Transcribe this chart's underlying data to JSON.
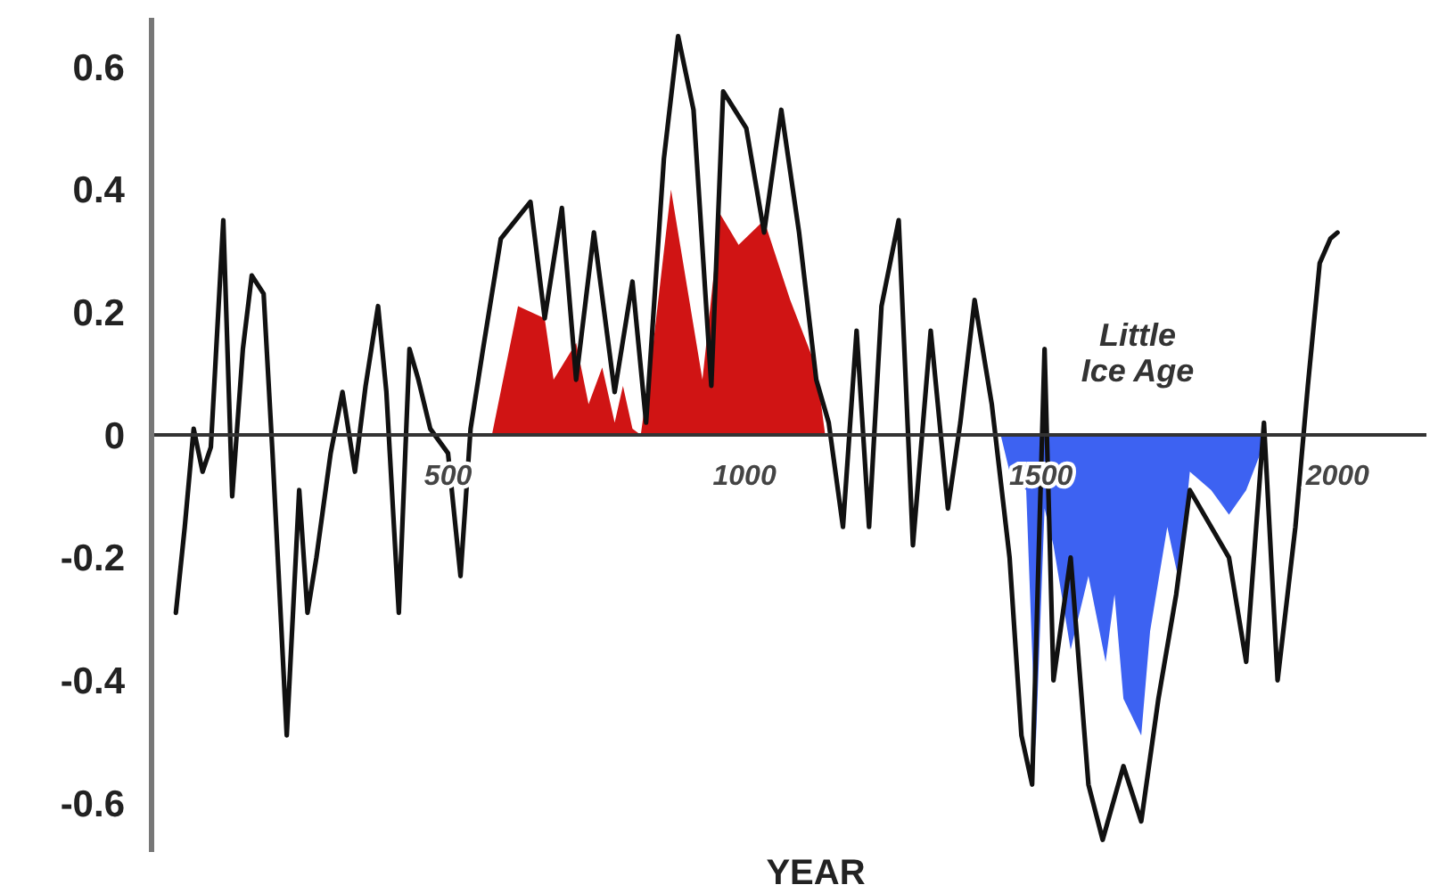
{
  "chart_data": {
    "type": "line",
    "xlabel": "YEAR",
    "xlim": [
      0,
      2150
    ],
    "ylim": [
      -0.68,
      0.68
    ],
    "xticks": [
      500,
      1000,
      1500,
      2000
    ],
    "yticks": [
      -0.6,
      -0.4,
      -0.2,
      0,
      0.2,
      0.4,
      0.6
    ],
    "grid": false,
    "marker": "none",
    "line_style": "solid",
    "annotations": [
      "Little Ice Age"
    ],
    "series": [
      {
        "type": "area",
        "color": "#d01414",
        "x": [
          574,
          618,
          663,
          678,
          716,
          737,
          760,
          781,
          795,
          811,
          825,
          845,
          876,
          929,
          959,
          990,
          1033,
          1077,
          1121,
          1136
        ],
        "values": [
          0,
          0.21,
          0.19,
          0.09,
          0.15,
          0.05,
          0.11,
          0.02,
          0.08,
          0.01,
          0,
          0.14,
          0.4,
          0.09,
          0.36,
          0.31,
          0.35,
          0.22,
          0.11,
          0
        ]
      },
      {
        "type": "area",
        "color": "#3d62f2",
        "x": [
          1432,
          1447,
          1475,
          1491,
          1506,
          1521,
          1550,
          1580,
          1609,
          1624,
          1639,
          1669,
          1684,
          1713,
          1733,
          1751,
          1787,
          1817,
          1846,
          1882
        ],
        "values": [
          0,
          -0.06,
          -0.09,
          -0.51,
          -0.12,
          -0.18,
          -0.35,
          -0.23,
          -0.37,
          -0.26,
          -0.43,
          -0.49,
          -0.32,
          -0.15,
          -0.24,
          -0.06,
          -0.09,
          -0.13,
          -0.09,
          0
        ]
      },
      {
        "color": "#111111",
        "x": [
          41,
          56,
          71,
          86,
          100,
          121,
          136,
          154,
          169,
          189,
          204,
          228,
          249,
          263,
          278,
          302,
          322,
          343,
          361,
          382,
          396,
          417,
          435,
          450,
          470,
          500,
          521,
          538,
          559,
          589,
          639,
          663,
          692,
          716,
          746,
          781,
          811,
          834,
          864,
          888,
          914,
          944,
          964,
          1003,
          1033,
          1062,
          1092,
          1121,
          1142,
          1166,
          1189,
          1210,
          1231,
          1260,
          1284,
          1314,
          1343,
          1364,
          1388,
          1417,
          1447,
          1467,
          1485,
          1506,
          1521,
          1550,
          1580,
          1604,
          1639,
          1669,
          1698,
          1728,
          1751,
          1787,
          1817,
          1846,
          1876,
          1899,
          1929,
          1950,
          1970,
          1988,
          2000
        ],
        "values": [
          -0.29,
          -0.15,
          0.01,
          -0.06,
          -0.02,
          0.35,
          -0.1,
          0.14,
          0.26,
          0.23,
          -0.03,
          -0.49,
          -0.09,
          -0.29,
          -0.2,
          -0.03,
          0.07,
          -0.06,
          0.08,
          0.21,
          0.07,
          -0.29,
          0.14,
          0.09,
          0.01,
          -0.03,
          -0.23,
          0.01,
          0.14,
          0.32,
          0.38,
          0.19,
          0.37,
          0.09,
          0.33,
          0.07,
          0.25,
          0.02,
          0.45,
          0.65,
          0.53,
          0.08,
          0.56,
          0.5,
          0.33,
          0.53,
          0.33,
          0.09,
          0.02,
          -0.15,
          0.17,
          -0.15,
          0.21,
          0.35,
          -0.18,
          0.17,
          -0.12,
          0.02,
          0.22,
          0.05,
          -0.2,
          -0.49,
          -0.57,
          0.14,
          -0.4,
          -0.2,
          -0.57,
          -0.66,
          -0.54,
          -0.63,
          -0.43,
          -0.26,
          -0.09,
          -0.15,
          -0.2,
          -0.37,
          0.02,
          -0.4,
          -0.15,
          0.08,
          0.28,
          0.32,
          0.33
        ]
      }
    ]
  }
}
